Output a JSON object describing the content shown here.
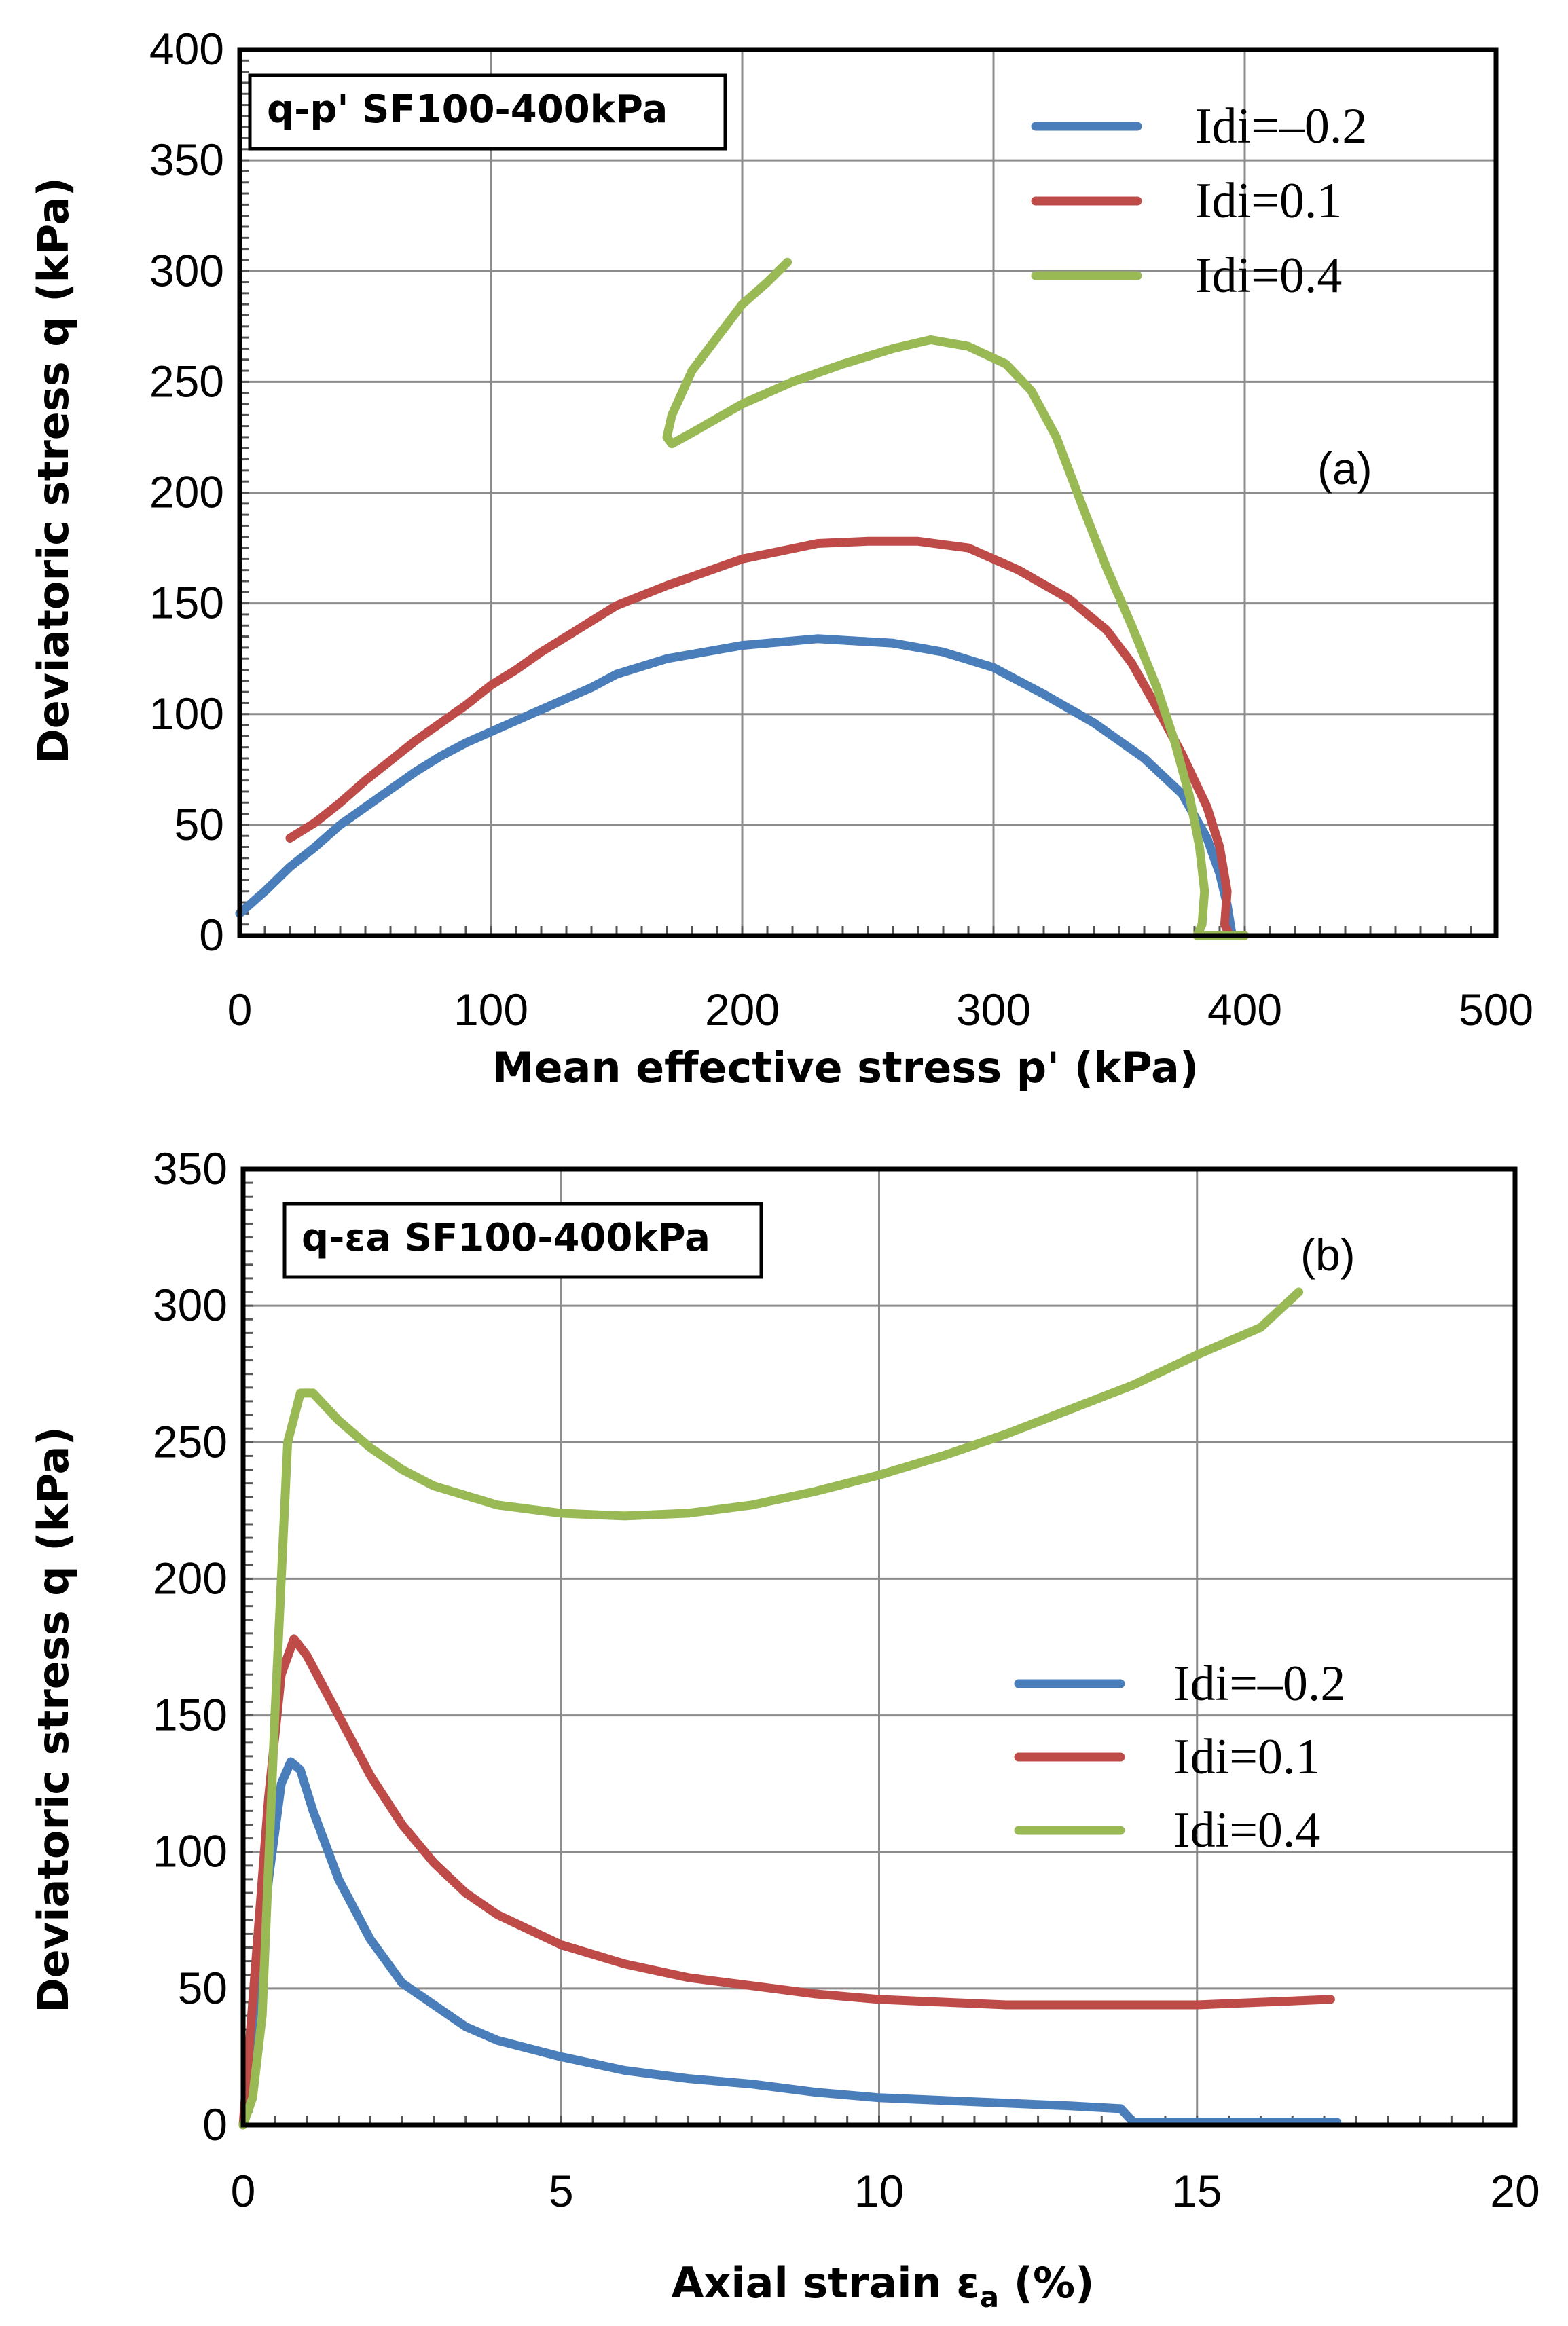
{
  "chart_data": [
    {
      "type": "line",
      "id": "a",
      "box_label": "q-p' SF100-400kPa",
      "panel_label": "(a)",
      "xlabel": "Mean effective stress p' (kPa)",
      "ylabel": "Deviatoric stress q (kPa)",
      "xlim": [
        0,
        500
      ],
      "ylim": [
        0,
        400
      ],
      "xticks": [
        0,
        100,
        200,
        300,
        400,
        500
      ],
      "yticks": [
        0,
        50,
        100,
        150,
        200,
        250,
        300,
        350,
        400
      ],
      "grid": true,
      "legend_position": "top-right",
      "series": [
        {
          "name": "Idi=–0.2",
          "color": "#4a7ebb",
          "points": [
            [
              0,
              10
            ],
            [
              10,
              20
            ],
            [
              20,
              31
            ],
            [
              30,
              40
            ],
            [
              40,
              50
            ],
            [
              50,
              58
            ],
            [
              60,
              66
            ],
            [
              70,
              74
            ],
            [
              80,
              81
            ],
            [
              90,
              87
            ],
            [
              100,
              92
            ],
            [
              120,
              102
            ],
            [
              140,
              112
            ],
            [
              150,
              118
            ],
            [
              170,
              125
            ],
            [
              200,
              131
            ],
            [
              230,
              134
            ],
            [
              260,
              132
            ],
            [
              280,
              128
            ],
            [
              300,
              121
            ],
            [
              320,
              109
            ],
            [
              340,
              96
            ],
            [
              360,
              80
            ],
            [
              375,
              64
            ],
            [
              385,
              44
            ],
            [
              390,
              28
            ],
            [
              393,
              14
            ],
            [
              395,
              0
            ]
          ]
        },
        {
          "name": "Idi=0.1",
          "color": "#be4b48",
          "points": [
            [
              20,
              44
            ],
            [
              30,
              51
            ],
            [
              40,
              60
            ],
            [
              50,
              70
            ],
            [
              60,
              79
            ],
            [
              70,
              88
            ],
            [
              80,
              96
            ],
            [
              90,
              104
            ],
            [
              100,
              113
            ],
            [
              110,
              120
            ],
            [
              120,
              128
            ],
            [
              130,
              135
            ],
            [
              140,
              142
            ],
            [
              150,
              149
            ],
            [
              170,
              158
            ],
            [
              200,
              170
            ],
            [
              230,
              177
            ],
            [
              250,
              178
            ],
            [
              270,
              178
            ],
            [
              290,
              175
            ],
            [
              310,
              165
            ],
            [
              330,
              152
            ],
            [
              345,
              138
            ],
            [
              355,
              123
            ],
            [
              365,
              103
            ],
            [
              375,
              82
            ],
            [
              385,
              58
            ],
            [
              390,
              40
            ],
            [
              393,
              20
            ],
            [
              392,
              5
            ],
            [
              394,
              0
            ]
          ]
        },
        {
          "name": "Idi=0.4",
          "color": "#98b954",
          "points": [
            [
              218,
              304
            ],
            [
              210,
              295
            ],
            [
              200,
              285
            ],
            [
              190,
              270
            ],
            [
              180,
              255
            ],
            [
              172,
              235
            ],
            [
              170,
              225
            ],
            [
              172,
              222
            ],
            [
              180,
              227
            ],
            [
              200,
              240
            ],
            [
              220,
              250
            ],
            [
              240,
              258
            ],
            [
              260,
              265
            ],
            [
              275,
              269
            ],
            [
              290,
              266
            ],
            [
              305,
              258
            ],
            [
              315,
              246
            ],
            [
              325,
              225
            ],
            [
              335,
              195
            ],
            [
              345,
              166
            ],
            [
              355,
              140
            ],
            [
              365,
              112
            ],
            [
              372,
              88
            ],
            [
              378,
              63
            ],
            [
              382,
              40
            ],
            [
              384,
              20
            ],
            [
              383,
              5
            ],
            [
              381,
              0
            ],
            [
              400,
              0
            ]
          ]
        }
      ]
    },
    {
      "type": "line",
      "id": "b",
      "box_label": "q-εa SF100-400kPa",
      "panel_label": "(b)",
      "xlabel": "Axial strain εa (%)",
      "ylabel": "Deviatoric stress q (kPa)",
      "xlim": [
        0,
        20
      ],
      "ylim": [
        0,
        350
      ],
      "xticks": [
        0,
        5,
        10,
        15,
        20
      ],
      "yticks": [
        0,
        50,
        100,
        150,
        200,
        250,
        300,
        350
      ],
      "grid": true,
      "legend_position": "middle-right",
      "series": [
        {
          "name": "Idi=–0.2",
          "color": "#4a7ebb",
          "points": [
            [
              0,
              0
            ],
            [
              0.2,
              40
            ],
            [
              0.4,
              90
            ],
            [
              0.6,
              125
            ],
            [
              0.75,
              133
            ],
            [
              0.9,
              130
            ],
            [
              1.1,
              115
            ],
            [
              1.5,
              90
            ],
            [
              2,
              68
            ],
            [
              2.5,
              52
            ],
            [
              3,
              44
            ],
            [
              3.5,
              36
            ],
            [
              4,
              31
            ],
            [
              5,
              25
            ],
            [
              6,
              20
            ],
            [
              7,
              17
            ],
            [
              8,
              15
            ],
            [
              9,
              12
            ],
            [
              10,
              10
            ],
            [
              11,
              9
            ],
            [
              12,
              8
            ],
            [
              13,
              7
            ],
            [
              13.8,
              6
            ],
            [
              14,
              1
            ],
            [
              17.2,
              1
            ]
          ]
        },
        {
          "name": "Idi=0.1",
          "color": "#be4b48",
          "points": [
            [
              0,
              0
            ],
            [
              0.2,
              60
            ],
            [
              0.4,
              120
            ],
            [
              0.6,
              165
            ],
            [
              0.8,
              178
            ],
            [
              1,
              172
            ],
            [
              1.5,
              150
            ],
            [
              2,
              128
            ],
            [
              2.5,
              110
            ],
            [
              3,
              96
            ],
            [
              3.5,
              85
            ],
            [
              4,
              77
            ],
            [
              5,
              66
            ],
            [
              6,
              59
            ],
            [
              7,
              54
            ],
            [
              8,
              51
            ],
            [
              9,
              48
            ],
            [
              10,
              46
            ],
            [
              11,
              45
            ],
            [
              12,
              44
            ],
            [
              14,
              44
            ],
            [
              15,
              44
            ],
            [
              17.1,
              46
            ]
          ]
        },
        {
          "name": "Idi=0.4",
          "color": "#98b954",
          "points": [
            [
              0,
              0
            ],
            [
              0.15,
              10
            ],
            [
              0.3,
              40
            ],
            [
              0.5,
              150
            ],
            [
              0.7,
              250
            ],
            [
              0.9,
              268
            ],
            [
              1.1,
              268
            ],
            [
              1.5,
              258
            ],
            [
              2,
              248
            ],
            [
              2.5,
              240
            ],
            [
              3,
              234
            ],
            [
              4,
              227
            ],
            [
              5,
              224
            ],
            [
              6,
              223
            ],
            [
              7,
              224
            ],
            [
              8,
              227
            ],
            [
              9,
              232
            ],
            [
              10,
              238
            ],
            [
              11,
              245
            ],
            [
              12,
              253
            ],
            [
              13,
              262
            ],
            [
              14,
              271
            ],
            [
              15,
              282
            ],
            [
              16,
              292
            ],
            [
              16.6,
              305
            ]
          ]
        }
      ]
    }
  ]
}
